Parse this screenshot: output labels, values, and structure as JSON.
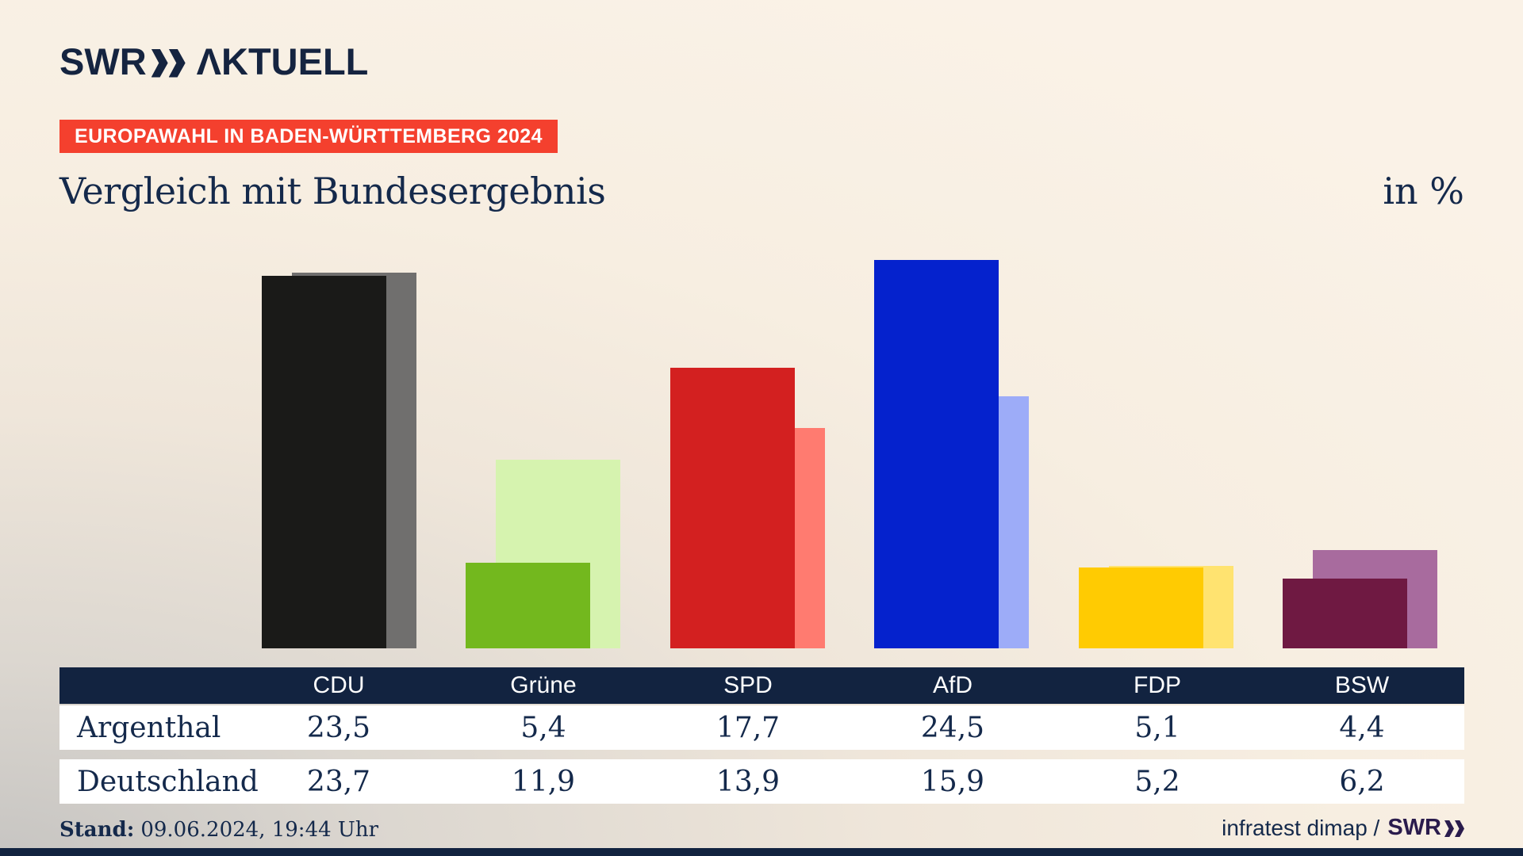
{
  "header": {
    "logo": {
      "swr": "SWR",
      "aktuell": "ΛKTUELL"
    },
    "badge": "EUROPAWAHL IN BADEN-WÜRTTEMBERG 2024"
  },
  "title": "Vergleich mit Bundesergebnis",
  "unit_label": "in %",
  "chart_data": {
    "type": "bar",
    "categories": [
      "CDU",
      "Grüne",
      "SPD",
      "AfD",
      "FDP",
      "BSW"
    ],
    "series": [
      {
        "name": "Argenthal",
        "values": [
          23.5,
          5.4,
          17.7,
          24.5,
          5.1,
          4.4
        ],
        "colors": [
          "#1a1a18",
          "#73b81e",
          "#d32020",
          "#0522cd",
          "#ffcb02",
          "#6f1942"
        ]
      },
      {
        "name": "Deutschland",
        "values": [
          23.7,
          11.9,
          13.9,
          15.9,
          5.2,
          6.2
        ],
        "colors": [
          "#706f6e",
          "#d6f3af",
          "#ff7b70",
          "#9dacf8",
          "#ffe370",
          "#a86b9e"
        ]
      }
    ],
    "title": "Vergleich mit Bundesergebnis",
    "xlabel": "",
    "ylabel": "in %",
    "ylim": [
      0,
      27.5
    ],
    "grid": false,
    "legend_position": "table-below"
  },
  "table": {
    "columns": [
      "CDU",
      "Grüne",
      "SPD",
      "AfD",
      "FDP",
      "BSW"
    ],
    "rows": [
      {
        "label": "Argenthal",
        "values": [
          "23,5",
          "5,4",
          "17,7",
          "24,5",
          "5,1",
          "4,4"
        ]
      },
      {
        "label": "Deutschland",
        "values": [
          "23,7",
          "11,9",
          "13,9",
          "15,9",
          "5,2",
          "6,2"
        ]
      }
    ]
  },
  "footer": {
    "stand_label": "Stand:",
    "stand_value": "09.06.2024, 19:44 Uhr",
    "source": "infratest dimap /",
    "source_logo": "SWR"
  }
}
